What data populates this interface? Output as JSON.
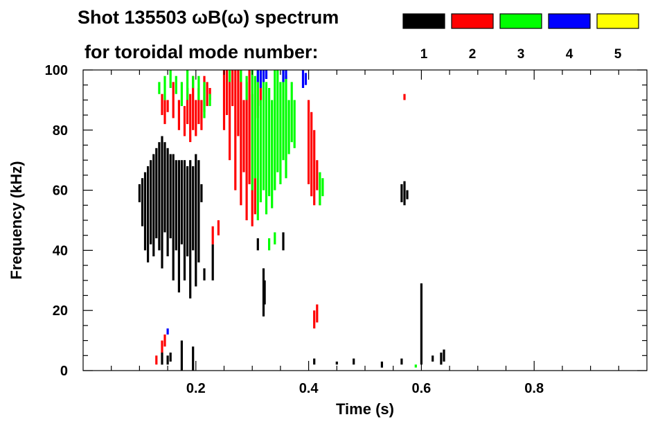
{
  "chart_data": {
    "type": "scatter",
    "title_line1": "Shot 135503 ωB(ω) spectrum",
    "title_line2": "for toroidal mode number:",
    "xlabel": "Time (s)",
    "ylabel": "Frequency (kHz)",
    "xlim": [
      0.0,
      1.0
    ],
    "ylim": [
      0,
      100
    ],
    "x_ticks": [
      0.2,
      0.4,
      0.6,
      0.8
    ],
    "x_tick_labels": [
      "0.2",
      "0.4",
      "0.6",
      "0.8"
    ],
    "y_ticks": [
      0,
      20,
      40,
      60,
      80,
      100
    ],
    "y_tick_labels": [
      "0",
      "20",
      "40",
      "60",
      "80",
      "100"
    ],
    "grid": false,
    "legend_position": "top-right",
    "series": [
      {
        "name": "1",
        "color": "#000000",
        "segments": [
          [
            0.1,
            56,
            62
          ],
          [
            0.105,
            48,
            64
          ],
          [
            0.11,
            40,
            66
          ],
          [
            0.115,
            36,
            68
          ],
          [
            0.12,
            42,
            70
          ],
          [
            0.125,
            38,
            72
          ],
          [
            0.13,
            44,
            74
          ],
          [
            0.135,
            40,
            76
          ],
          [
            0.14,
            34,
            78
          ],
          [
            0.145,
            46,
            76
          ],
          [
            0.15,
            38,
            74
          ],
          [
            0.155,
            44,
            72
          ],
          [
            0.16,
            30,
            72
          ],
          [
            0.165,
            40,
            70
          ],
          [
            0.17,
            26,
            70
          ],
          [
            0.175,
            42,
            70
          ],
          [
            0.18,
            30,
            70
          ],
          [
            0.185,
            38,
            68
          ],
          [
            0.19,
            24,
            70
          ],
          [
            0.195,
            40,
            68
          ],
          [
            0.2,
            28,
            72
          ],
          [
            0.205,
            36,
            70
          ],
          [
            0.21,
            56,
            62
          ],
          [
            0.215,
            30,
            34
          ],
          [
            0.14,
            2,
            6
          ],
          [
            0.15,
            2,
            5
          ],
          [
            0.155,
            3,
            6
          ],
          [
            0.175,
            0,
            10
          ],
          [
            0.195,
            0,
            8
          ],
          [
            0.32,
            18,
            34
          ],
          [
            0.322,
            22,
            30
          ],
          [
            0.23,
            30,
            42
          ],
          [
            0.31,
            40,
            44
          ],
          [
            0.355,
            40,
            46
          ],
          [
            0.41,
            2,
            4
          ],
          [
            0.565,
            56,
            62
          ],
          [
            0.57,
            55,
            63
          ],
          [
            0.575,
            57,
            60
          ],
          [
            0.6,
            2,
            29
          ],
          [
            0.635,
            2,
            6
          ],
          [
            0.64,
            3,
            7
          ],
          [
            0.62,
            3,
            5
          ],
          [
            0.565,
            2,
            4
          ],
          [
            0.53,
            1,
            3
          ],
          [
            0.48,
            2,
            4
          ],
          [
            0.45,
            2,
            3
          ]
        ]
      },
      {
        "name": "2",
        "color": "#ff0000",
        "segments": [
          [
            0.14,
            85,
            92
          ],
          [
            0.145,
            82,
            90
          ],
          [
            0.15,
            86,
            90
          ],
          [
            0.16,
            84,
            96
          ],
          [
            0.17,
            80,
            90
          ],
          [
            0.18,
            78,
            88
          ],
          [
            0.185,
            82,
            94
          ],
          [
            0.19,
            76,
            92
          ],
          [
            0.195,
            80,
            98
          ],
          [
            0.2,
            78,
            90
          ],
          [
            0.205,
            82,
            94
          ],
          [
            0.21,
            80,
            90
          ],
          [
            0.215,
            86,
            98
          ],
          [
            0.22,
            88,
            96
          ],
          [
            0.225,
            90,
            94
          ],
          [
            0.23,
            42,
            48
          ],
          [
            0.24,
            45,
            50
          ],
          [
            0.25,
            80,
            100
          ],
          [
            0.255,
            85,
            100
          ],
          [
            0.26,
            70,
            100
          ],
          [
            0.265,
            88,
            100
          ],
          [
            0.27,
            60,
            100
          ],
          [
            0.275,
            78,
            100
          ],
          [
            0.28,
            55,
            100
          ],
          [
            0.285,
            66,
            90
          ],
          [
            0.29,
            50,
            96
          ],
          [
            0.295,
            62,
            100
          ],
          [
            0.3,
            48,
            92
          ],
          [
            0.305,
            52,
            64
          ],
          [
            0.31,
            84,
            96
          ],
          [
            0.315,
            88,
            94
          ],
          [
            0.4,
            62,
            90
          ],
          [
            0.405,
            58,
            86
          ],
          [
            0.41,
            55,
            80
          ],
          [
            0.415,
            60,
            70
          ],
          [
            0.42,
            55,
            60
          ],
          [
            0.41,
            14,
            20
          ],
          [
            0.415,
            16,
            22
          ],
          [
            0.14,
            6,
            10
          ],
          [
            0.145,
            8,
            12
          ],
          [
            0.57,
            90,
            92
          ],
          [
            0.13,
            2,
            5
          ]
        ]
      },
      {
        "name": "3",
        "color": "#00ff00",
        "segments": [
          [
            0.135,
            92,
            96
          ],
          [
            0.145,
            90,
            98
          ],
          [
            0.155,
            94,
            100
          ],
          [
            0.165,
            92,
            98
          ],
          [
            0.175,
            88,
            96
          ],
          [
            0.185,
            90,
            100
          ],
          [
            0.195,
            94,
            98
          ],
          [
            0.205,
            90,
            98
          ],
          [
            0.215,
            84,
            96
          ],
          [
            0.225,
            88,
            92
          ],
          [
            0.26,
            96,
            100
          ],
          [
            0.28,
            96,
            100
          ],
          [
            0.29,
            90,
            98
          ],
          [
            0.3,
            60,
            100
          ],
          [
            0.305,
            64,
            98
          ],
          [
            0.31,
            50,
            100
          ],
          [
            0.315,
            56,
            90
          ],
          [
            0.32,
            60,
            100
          ],
          [
            0.325,
            52,
            96
          ],
          [
            0.33,
            58,
            94
          ],
          [
            0.335,
            54,
            90
          ],
          [
            0.34,
            60,
            100
          ],
          [
            0.345,
            66,
            100
          ],
          [
            0.35,
            62,
            96
          ],
          [
            0.355,
            70,
            100
          ],
          [
            0.36,
            64,
            98
          ],
          [
            0.365,
            72,
            90
          ],
          [
            0.37,
            76,
            96
          ],
          [
            0.375,
            74,
            90
          ],
          [
            0.42,
            55,
            66
          ],
          [
            0.425,
            58,
            64
          ],
          [
            0.33,
            40,
            44
          ],
          [
            0.34,
            42,
            46
          ],
          [
            0.59,
            1,
            2
          ]
        ]
      },
      {
        "name": "4",
        "color": "#0000ff",
        "segments": [
          [
            0.31,
            96,
            100
          ],
          [
            0.315,
            94,
            100
          ],
          [
            0.32,
            96,
            100
          ],
          [
            0.325,
            97,
            100
          ],
          [
            0.355,
            96,
            100
          ],
          [
            0.36,
            97,
            100
          ],
          [
            0.39,
            94,
            100
          ],
          [
            0.395,
            95,
            99
          ],
          [
            0.15,
            12,
            14
          ]
        ]
      },
      {
        "name": "5",
        "color": "#ffff00",
        "segments": []
      }
    ]
  }
}
